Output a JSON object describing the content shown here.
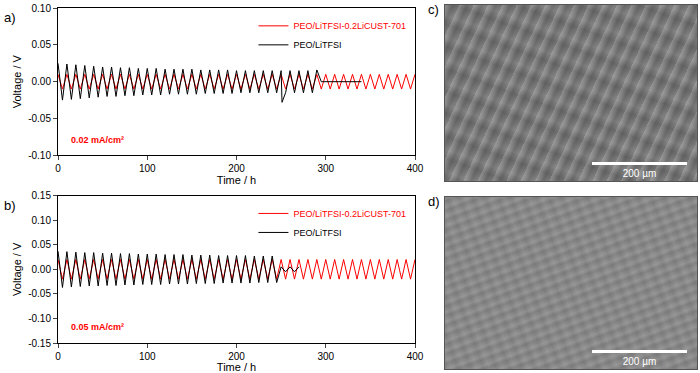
{
  "chart_data": [
    {
      "type": "line",
      "title": "a)",
      "x_label": "Time / h",
      "y_label": "Voltage / V",
      "xlim": [
        0,
        400
      ],
      "xticks": [
        0,
        100,
        200,
        300,
        400
      ],
      "ylim": [
        -0.1,
        0.1
      ],
      "yticks": [
        {
          "value": -0.1,
          "label": "-0.10"
        },
        -0.05,
        {
          "value": 0,
          "label": "0.00"
        },
        0.05,
        {
          "value": 0.1,
          "label": "0.10"
        }
      ],
      "grid": false,
      "legend": "upper right",
      "annotations": [
        {
          "text": "0.02 mA/cm²",
          "color": "#ff0000"
        }
      ],
      "series": [
        {
          "name": "PEO/LiTFSI-0.2LiCUST-701",
          "color": "#ff0000",
          "x": [
            0,
            5,
            10,
            15,
            20,
            25,
            30,
            35,
            40,
            45,
            50,
            55,
            60,
            65,
            70,
            75,
            80,
            85,
            90,
            95,
            100,
            105,
            110,
            115,
            120,
            125,
            130,
            135,
            140,
            145,
            150,
            155,
            160,
            165,
            170,
            175,
            180,
            185,
            190,
            195,
            200,
            205,
            210,
            215,
            220,
            225,
            230,
            235,
            240,
            245,
            250,
            255,
            260,
            265,
            270,
            275,
            280,
            285,
            290,
            295,
            300,
            305,
            310,
            315,
            320,
            325,
            330,
            335,
            340,
            345,
            350,
            355,
            360,
            365,
            370,
            375,
            380,
            385,
            390,
            395,
            400
          ],
          "values": [
            0.01,
            -0.01,
            0.01,
            -0.01,
            0.01,
            -0.01,
            0.01,
            -0.01,
            0.01,
            -0.01,
            0.01,
            -0.01,
            0.01,
            -0.01,
            0.01,
            -0.01,
            0.01,
            -0.01,
            0.01,
            -0.01,
            0.01,
            -0.01,
            0.01,
            -0.01,
            0.01,
            -0.01,
            0.01,
            -0.01,
            0.01,
            -0.01,
            0.01,
            -0.01,
            0.01,
            -0.01,
            0.01,
            -0.01,
            0.01,
            -0.01,
            0.01,
            -0.01,
            0.01,
            -0.01,
            0.01,
            -0.01,
            0.01,
            -0.01,
            0.01,
            -0.01,
            0.01,
            -0.01,
            0.01,
            -0.01,
            0.01,
            -0.01,
            0.01,
            -0.01,
            0.01,
            -0.01,
            0.01,
            -0.01,
            0.01,
            -0.01,
            0.01,
            -0.01,
            0.01,
            -0.01,
            0.01,
            -0.01,
            0.01,
            -0.01,
            0.01,
            -0.01,
            0.01,
            -0.01,
            0.01,
            -0.01,
            0.01,
            -0.01,
            0.01,
            -0.01,
            0.01
          ]
        },
        {
          "name": "PEO/LiTFSI",
          "color": "#000000",
          "x": [
            0,
            5,
            10,
            15,
            20,
            25,
            30,
            35,
            40,
            45,
            50,
            55,
            60,
            65,
            70,
            75,
            80,
            85,
            90,
            95,
            100,
            105,
            110,
            115,
            120,
            125,
            130,
            135,
            140,
            145,
            150,
            155,
            160,
            165,
            170,
            175,
            180,
            185,
            190,
            195,
            200,
            205,
            210,
            215,
            220,
            225,
            230,
            235,
            240,
            245,
            250,
            251,
            255,
            260,
            265,
            270,
            275,
            280,
            285,
            290,
            295,
            340
          ],
          "values": [
            0.025,
            -0.025,
            0.024,
            -0.024,
            0.023,
            -0.023,
            0.022,
            -0.022,
            0.021,
            -0.021,
            0.02,
            -0.02,
            0.02,
            -0.02,
            0.019,
            -0.019,
            0.019,
            -0.019,
            0.018,
            -0.018,
            0.018,
            -0.018,
            0.018,
            -0.018,
            0.017,
            -0.017,
            0.017,
            -0.017,
            0.017,
            -0.017,
            0.017,
            -0.017,
            0.016,
            -0.016,
            0.016,
            -0.016,
            0.016,
            -0.016,
            0.016,
            -0.016,
            0.015,
            -0.015,
            0.015,
            -0.015,
            0.015,
            -0.015,
            0.015,
            -0.015,
            0.015,
            -0.015,
            0.015,
            -0.028,
            -0.015,
            0.015,
            -0.015,
            0.015,
            -0.015,
            0.015,
            -0.015,
            0.016,
            0,
            0
          ]
        }
      ]
    },
    {
      "type": "line",
      "title": "b)",
      "x_label": "Time / h",
      "y_label": "Voltage / V",
      "xlim": [
        0,
        400
      ],
      "xticks": [
        0,
        100,
        200,
        300,
        400
      ],
      "ylim": [
        -0.15,
        0.15
      ],
      "yticks": [
        -0.15,
        {
          "value": -0.1,
          "label": "-0.10"
        },
        -0.05,
        {
          "value": 0,
          "label": "0.00"
        },
        0.05,
        {
          "value": 0.1,
          "label": "0.10"
        },
        0.15
      ],
      "grid": false,
      "legend": "upper right",
      "annotations": [
        {
          "text": "0.05 mA/cm²",
          "color": "#ff0000"
        }
      ],
      "series": [
        {
          "name": "PEO/LiTFSI-0.2LiCUST-701",
          "color": "#ff0000",
          "x": [
            0,
            5,
            10,
            15,
            20,
            25,
            30,
            35,
            40,
            45,
            50,
            55,
            60,
            65,
            70,
            75,
            80,
            85,
            90,
            95,
            100,
            105,
            110,
            115,
            120,
            125,
            130,
            135,
            140,
            145,
            150,
            155,
            160,
            165,
            170,
            175,
            180,
            185,
            190,
            195,
            200,
            205,
            210,
            215,
            220,
            225,
            230,
            235,
            240,
            245,
            250,
            255,
            260,
            265,
            270,
            275,
            280,
            285,
            290,
            295,
            300,
            305,
            310,
            315,
            320,
            325,
            330,
            335,
            340,
            345,
            350,
            355,
            360,
            365,
            370,
            375,
            380,
            385,
            390,
            395,
            400
          ],
          "values": [
            0.02,
            -0.02,
            0.02,
            -0.02,
            0.02,
            -0.02,
            0.02,
            -0.02,
            0.02,
            -0.02,
            0.02,
            -0.02,
            0.02,
            -0.02,
            0.02,
            -0.02,
            0.02,
            -0.02,
            0.02,
            -0.02,
            0.02,
            -0.02,
            0.02,
            -0.02,
            0.02,
            -0.02,
            0.02,
            -0.02,
            0.02,
            -0.02,
            0.02,
            -0.02,
            0.02,
            -0.02,
            0.02,
            -0.02,
            0.02,
            -0.02,
            0.02,
            -0.02,
            0.02,
            -0.02,
            0.02,
            -0.02,
            0.02,
            -0.02,
            0.02,
            -0.02,
            0.02,
            -0.02,
            0.02,
            -0.02,
            0.02,
            -0.02,
            0.02,
            -0.02,
            0.02,
            -0.02,
            0.02,
            -0.02,
            0.02,
            -0.02,
            0.02,
            -0.02,
            0.02,
            -0.02,
            0.02,
            -0.02,
            0.02,
            -0.02,
            0.02,
            -0.02,
            0.02,
            -0.02,
            0.02,
            -0.02,
            0.02,
            -0.02,
            0.02,
            -0.02,
            0.02
          ]
        },
        {
          "name": "PEO/LiTFSI",
          "color": "#000000",
          "x": [
            0,
            5,
            10,
            15,
            20,
            25,
            30,
            35,
            40,
            45,
            50,
            55,
            60,
            65,
            70,
            75,
            80,
            85,
            90,
            95,
            100,
            105,
            110,
            115,
            120,
            125,
            130,
            135,
            140,
            145,
            150,
            155,
            160,
            165,
            170,
            175,
            180,
            185,
            190,
            195,
            200,
            205,
            210,
            215,
            220,
            225,
            230,
            235,
            240,
            245,
            250,
            255,
            260,
            265,
            270
          ],
          "values": [
            0.037,
            -0.037,
            0.036,
            -0.036,
            0.035,
            -0.035,
            0.034,
            -0.034,
            0.034,
            -0.034,
            0.033,
            -0.033,
            0.033,
            -0.033,
            0.032,
            -0.032,
            0.032,
            -0.032,
            0.031,
            -0.031,
            0.031,
            -0.031,
            0.031,
            -0.031,
            0.03,
            -0.03,
            0.03,
            -0.03,
            0.03,
            -0.03,
            0.029,
            -0.029,
            0.029,
            -0.029,
            0.029,
            -0.029,
            0.028,
            -0.028,
            0.028,
            -0.028,
            0.028,
            -0.028,
            0.028,
            -0.028,
            0.027,
            -0.027,
            0.027,
            -0.027,
            0.027,
            -0.027,
            0.005,
            -0.005,
            0.005,
            -0.005,
            0.005
          ]
        }
      ]
    }
  ],
  "images": [
    {
      "label": "c)",
      "scale_bar": "200 µm"
    },
    {
      "label": "d)",
      "scale_bar": "200 µm"
    }
  ]
}
